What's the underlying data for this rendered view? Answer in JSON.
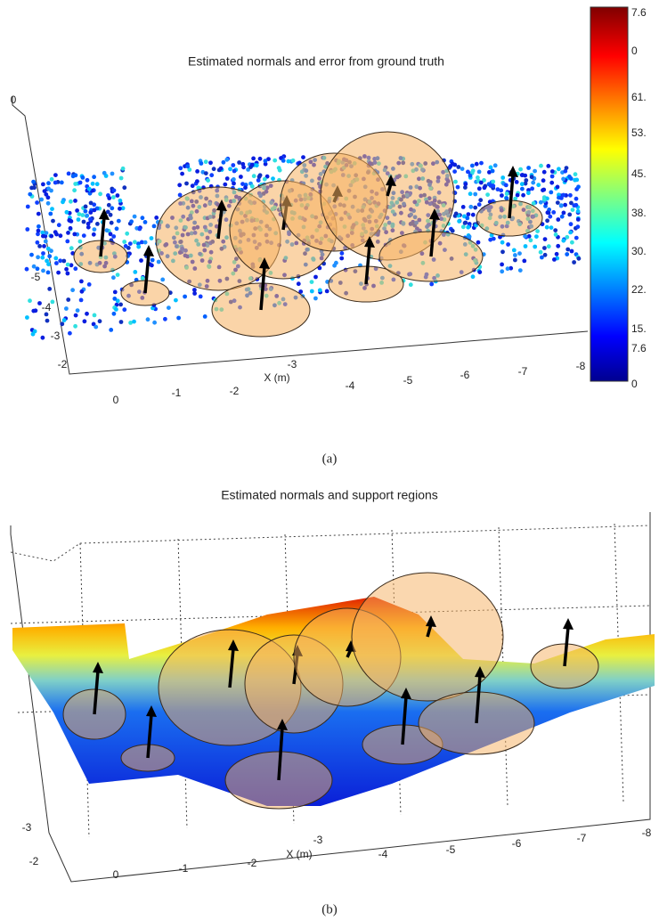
{
  "figure_a": {
    "title": "Estimated normals and error from ground truth",
    "y_tick_labels": [
      "0",
      "-5",
      "-4",
      "-3",
      "-2"
    ],
    "x_tick_labels": [
      "0",
      "-1",
      "-2",
      "-3",
      "-4",
      "-5",
      "-6",
      "-7",
      "-8"
    ],
    "x_label": "X (m)",
    "colorbar_labels": [
      "7.6",
      "0",
      "61.",
      "53.",
      "45.",
      "38.",
      "30.",
      "22.",
      "15.",
      "7.6",
      "0"
    ],
    "caption": "(a)"
  },
  "figure_b": {
    "title": "Estimated normals and support regions",
    "y_tick_labels": [
      "-3",
      "-2"
    ],
    "x_tick_labels": [
      "0",
      "-1",
      "-2",
      "-3",
      "-4",
      "-5",
      "-6",
      "-7",
      "-8"
    ],
    "x_label": "X (m)",
    "caption": "(b)"
  }
}
